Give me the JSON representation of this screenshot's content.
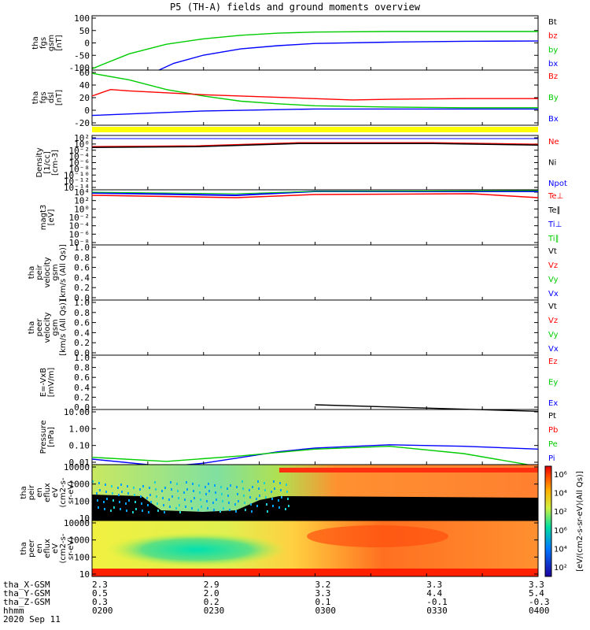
{
  "title": "P5 (TH-A) fields and ground moments overview",
  "chart_data": [
    {
      "type": "line",
      "panel": "fgs_gsm",
      "ylabel": [
        "tha",
        "fgs",
        "gsm",
        "[nT]"
      ],
      "yticks": [
        "100",
        "50",
        "0",
        "-50",
        "-100"
      ],
      "ylim": [
        -100,
        100
      ],
      "legend": [
        {
          "name": "Bt",
          "color": "#000000"
        },
        {
          "name": "bz",
          "color": "#ff0000"
        },
        {
          "name": "by",
          "color": "#00cc00"
        },
        {
          "name": "bx",
          "color": "#0000ff"
        }
      ],
      "series": [
        {
          "name": "by",
          "color": "#00cc00",
          "x": [
            "0200",
            "0210",
            "0220",
            "0230",
            "0240",
            "0250",
            "0300",
            "0320",
            "0340",
            "0400"
          ],
          "values": [
            -95,
            -40,
            -5,
            15,
            28,
            36,
            40,
            42,
            42,
            42
          ]
        },
        {
          "name": "bx",
          "color": "#0000ff",
          "x": [
            "0218",
            "0222",
            "0230",
            "0240",
            "0250",
            "0300",
            "0320",
            "0340",
            "0400"
          ],
          "values": [
            -100,
            -75,
            -45,
            -22,
            -10,
            -2,
            3,
            6,
            7
          ]
        }
      ]
    },
    {
      "type": "line",
      "panel": "fgs_dsl",
      "ylabel": [
        "tha",
        "fgs",
        "dsl",
        "[nT]"
      ],
      "yticks": [
        "60",
        "40",
        "20",
        "0",
        "-20"
      ],
      "ylim": [
        -25,
        60
      ],
      "legend": [
        {
          "name": "Bz",
          "color": "#ff0000"
        },
        {
          "name": "By",
          "color": "#00cc00"
        },
        {
          "name": "Bx",
          "color": "#0000ff"
        }
      ],
      "series": [
        {
          "name": "By",
          "color": "#00cc00",
          "x": [
            "0200",
            "0210",
            "0220",
            "0230",
            "0240",
            "0250",
            "0300",
            "0320",
            "0340",
            "0400"
          ],
          "values": [
            55,
            45,
            30,
            20,
            12,
            8,
            5,
            3,
            2,
            2
          ]
        },
        {
          "name": "Bz",
          "color": "#ff0000",
          "x": [
            "0200",
            "0205",
            "0210",
            "0230",
            "0250",
            "0310",
            "0320",
            "0340",
            "0400"
          ],
          "values": [
            20,
            30,
            28,
            22,
            18,
            14,
            15,
            16,
            16
          ]
        },
        {
          "name": "Bx",
          "color": "#0000ff",
          "x": [
            "0200",
            "0230",
            "0300",
            "0330",
            "0400"
          ],
          "values": [
            -10,
            -3,
            0,
            0,
            0
          ]
        }
      ]
    },
    {
      "type": "line",
      "panel": "density",
      "ylabel": [
        "Density",
        "[1/cc]",
        "[cm-3]"
      ],
      "yticks": [
        "10²",
        "10⁰",
        "10⁻²",
        "10⁻⁴",
        "10⁻⁶",
        "10⁻⁸",
        "10⁻¹⁰",
        "10⁻¹²",
        "10⁻¹⁴"
      ],
      "legend": [
        {
          "name": "Ne",
          "color": "#ff0000"
        },
        {
          "name": "Ni",
          "color": "#000000"
        },
        {
          "name": "Npot",
          "color": "#0000ff"
        }
      ]
    },
    {
      "type": "line",
      "panel": "temperature",
      "ylabel": [
        "magt3",
        "[eV]"
      ],
      "yticks": [
        "10⁴",
        "10²",
        "10⁰",
        "10⁻²",
        "10⁻⁴",
        "10⁻⁶",
        "10⁻⁸"
      ],
      "legend": [
        {
          "name": "Te⊥",
          "color": "#ff0000"
        },
        {
          "name": "Te∥",
          "color": "#000000"
        },
        {
          "name": "Ti⊥",
          "color": "#0000ff"
        },
        {
          "name": "Ti∥",
          "color": "#00cc00"
        }
      ]
    },
    {
      "type": "line",
      "panel": "peir_velocity",
      "ylabel": [
        "tha",
        "peir",
        "velocity",
        "gsm",
        "[km/s (All Qs)]"
      ],
      "yticks": [
        "1.0",
        "0.8",
        "0.6",
        "0.4",
        "0.2",
        "0.0"
      ],
      "ylim": [
        0,
        1
      ],
      "legend": [
        {
          "name": "Vt",
          "color": "#000000"
        },
        {
          "name": "Vz",
          "color": "#ff0000"
        },
        {
          "name": "Vy",
          "color": "#00cc00"
        },
        {
          "name": "Vx",
          "color": "#0000ff"
        }
      ]
    },
    {
      "type": "line",
      "panel": "peer_velocity",
      "ylabel": [
        "tha",
        "peer",
        "velocity",
        "gsm",
        "[km/s (All Qs)]"
      ],
      "yticks": [
        "1.0",
        "0.8",
        "0.6",
        "0.4",
        "0.2",
        "0.0"
      ],
      "ylim": [
        0,
        1
      ],
      "legend": [
        {
          "name": "Vt",
          "color": "#000000"
        },
        {
          "name": "Vz",
          "color": "#ff0000"
        },
        {
          "name": "Vy",
          "color": "#00cc00"
        },
        {
          "name": "Vx",
          "color": "#0000ff"
        }
      ]
    },
    {
      "type": "line",
      "panel": "efield",
      "ylabel": [
        "E=-VxB",
        "[mV/m]"
      ],
      "yticks": [
        "1.0",
        "0.8",
        "0.6",
        "0.4",
        "0.2",
        "0.0"
      ],
      "ylim": [
        0,
        1
      ],
      "legend": [
        {
          "name": "Ez",
          "color": "#ff0000"
        },
        {
          "name": "Ey",
          "color": "#00cc00"
        },
        {
          "name": "Ex",
          "color": "#0000ff"
        }
      ]
    },
    {
      "type": "line",
      "panel": "pressure",
      "ylabel": [
        "Pressure",
        "[nPa]"
      ],
      "yticks": [
        "10.00",
        "1.00",
        "0.10",
        "0.01"
      ],
      "log_scale": true,
      "legend": [
        {
          "name": "Pt",
          "color": "#000000"
        },
        {
          "name": "Pb",
          "color": "#ff0000"
        },
        {
          "name": "Pe",
          "color": "#00cc00"
        },
        {
          "name": "Pi",
          "color": "#0000ff"
        }
      ],
      "series": [
        {
          "name": "Pt",
          "color": "#000000",
          "x": [
            "0300",
            "0400"
          ],
          "values": [
            18,
            8
          ]
        },
        {
          "name": "Pi",
          "color": "#0000ff",
          "x": [
            "0200",
            "0220",
            "0230",
            "0250",
            "0300",
            "0320",
            "0340",
            "0400"
          ],
          "values": [
            0.02,
            0.008,
            0.012,
            0.05,
            0.08,
            0.12,
            0.1,
            0.07
          ]
        },
        {
          "name": "Pe",
          "color": "#00cc00",
          "x": [
            "0200",
            "0220",
            "0240",
            "0300",
            "0320",
            "0340",
            "0400"
          ],
          "values": [
            0.025,
            0.015,
            0.03,
            0.07,
            0.1,
            0.04,
            0.008
          ]
        }
      ]
    },
    {
      "type": "heatmap",
      "panel": "peir_eflux",
      "ylabel": [
        "tha",
        "peir",
        "en",
        "eflux",
        "eV",
        "(cm2-s-",
        "sr-eV)"
      ],
      "yticks": [
        "10000",
        "1000",
        "100",
        "10"
      ],
      "colorbar_label": "[eV/(cm2-s-sr-eV)(All Qs)]",
      "colorbar_ticks": [
        "10⁶",
        "10⁴",
        "10²"
      ]
    },
    {
      "type": "heatmap",
      "panel": "peer_eflux",
      "ylabel": [
        "tha",
        "peer",
        "en",
        "eflux",
        "eV",
        "(cm2-s-",
        "sr-eV)"
      ],
      "yticks": [
        "10000",
        "1000",
        "100",
        "10"
      ],
      "colorbar_label": "[eV/(cm2-s-sr-eV)]",
      "colorbar_ticks": [
        "10⁶",
        "10⁴",
        "10²"
      ]
    }
  ],
  "orbit": {
    "labels": [
      "tha_X-GSM",
      "tha_Y-GSM",
      "tha_Z-GSM",
      "hhmm",
      "2020 Sep 11"
    ],
    "columns": [
      [
        "2.3",
        "0.5",
        "0.3",
        "0200"
      ],
      [
        "2.9",
        "2.0",
        "0.2",
        "0230"
      ],
      [
        "3.2",
        "3.3",
        "0.1",
        "0300"
      ],
      [
        "3.3",
        "4.4",
        "-0.1",
        "0330"
      ],
      [
        "3.3",
        "5.4",
        "-0.3",
        "0400"
      ]
    ]
  }
}
